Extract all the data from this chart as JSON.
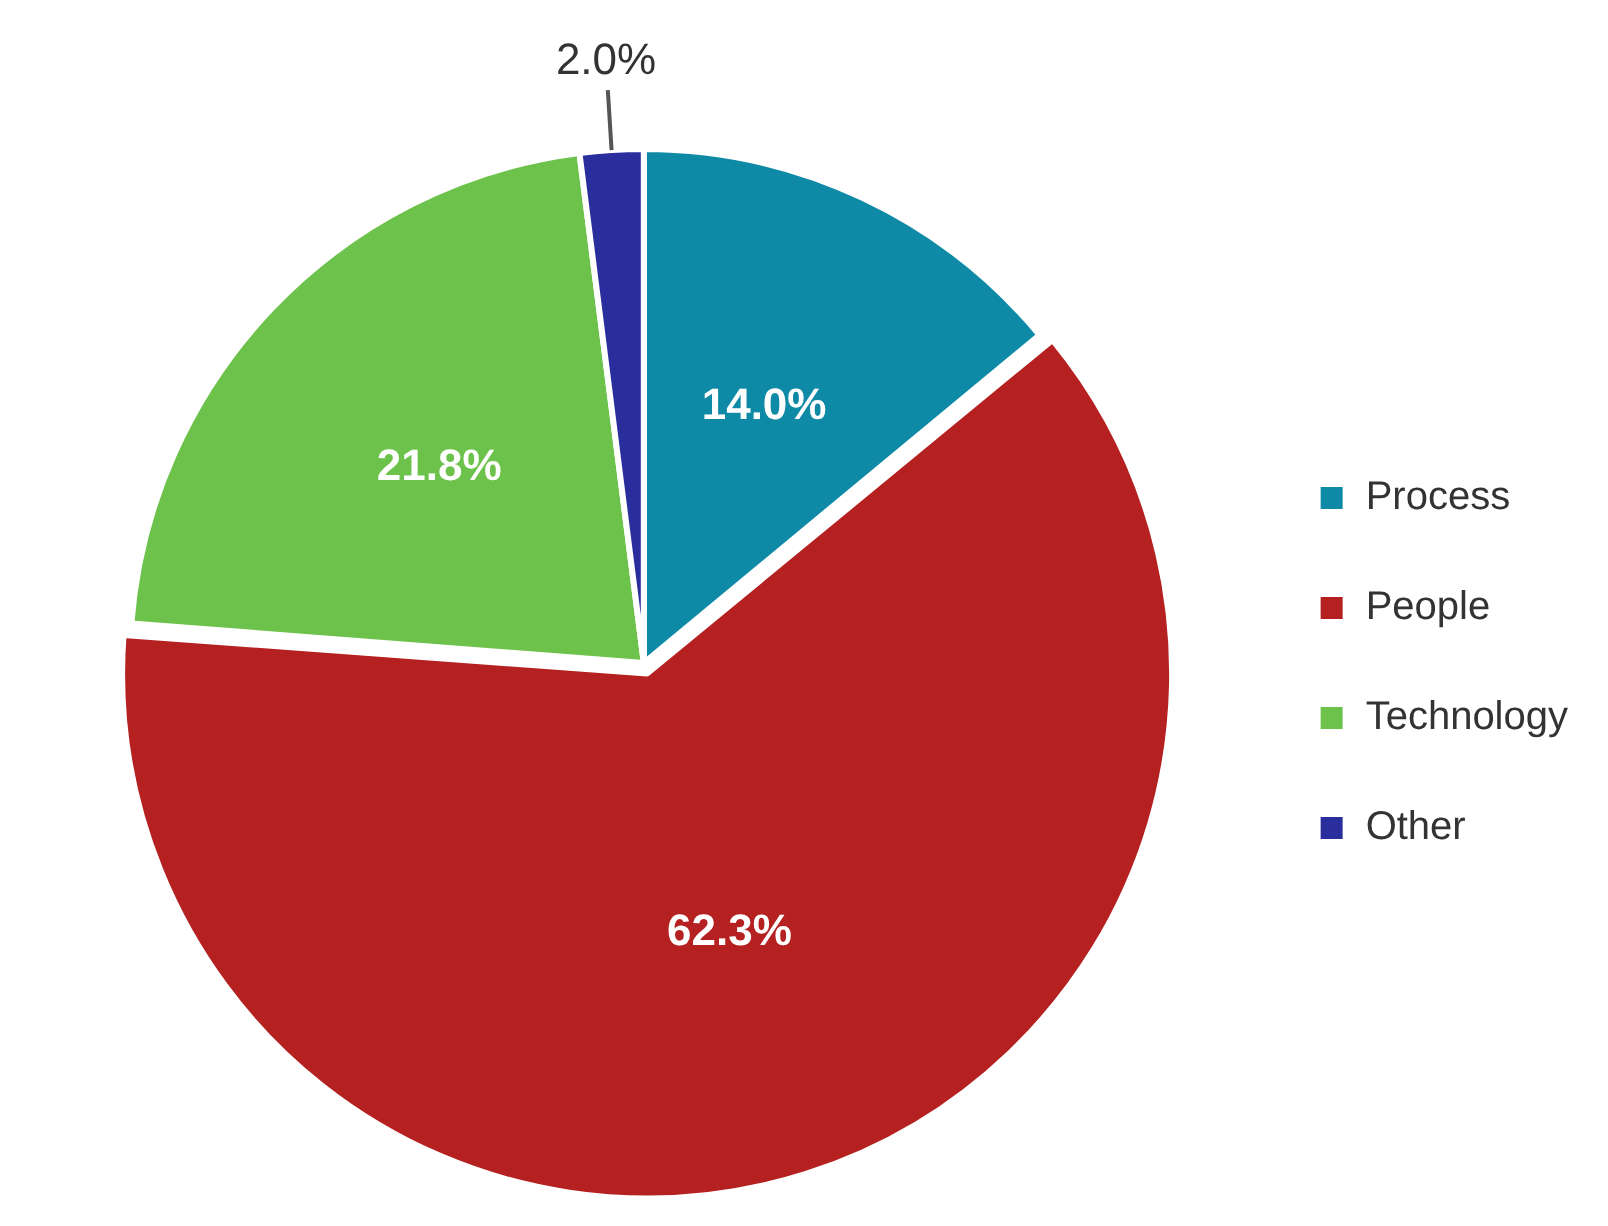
{
  "chart_data": {
    "type": "pie",
    "categories": [
      "Process",
      "People",
      "Technology",
      "Other"
    ],
    "values": [
      14.0,
      62.3,
      21.8,
      2.0
    ],
    "colors": [
      "#0f8aa6",
      "#b52020",
      "#6cc24a",
      "#2a2e9c"
    ],
    "value_labels": [
      "14.0%",
      "62.3%",
      "21.8%",
      "2.0%"
    ],
    "legend": "right"
  }
}
